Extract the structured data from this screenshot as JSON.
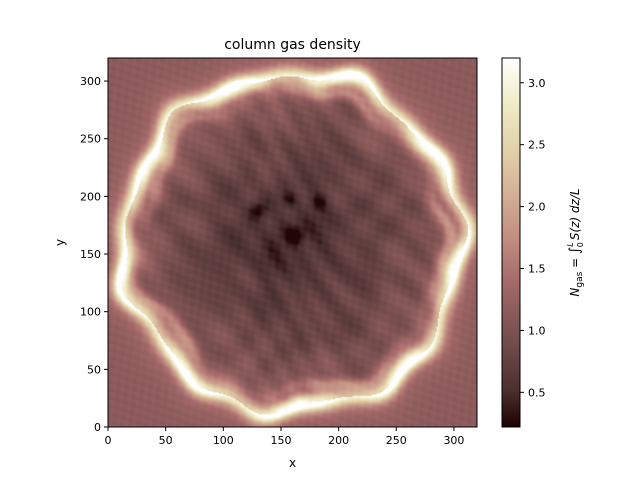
{
  "chart_data": {
    "type": "heatmap",
    "title": "column gas density",
    "xlabel": "x",
    "ylabel": "y",
    "xlim": [
      0,
      320
    ],
    "ylim": [
      0,
      320
    ],
    "xticks": [
      0,
      50,
      100,
      150,
      200,
      250,
      300
    ],
    "yticks": [
      0,
      50,
      100,
      150,
      200,
      250,
      300
    ],
    "colormap": "pink",
    "colorbar": {
      "label": "N_gas = ∫_0^L S(z) dz/L",
      "label_parts": {
        "n": "N",
        "n_sub": "gas",
        "eq": " = ",
        "integral": "∫",
        "upper": "L",
        "lower": "0",
        "body": "S(z) dz/L"
      },
      "range": [
        0.22,
        3.2
      ],
      "ticks": [
        0.5,
        1.0,
        1.5,
        2.0,
        2.5,
        3.0
      ],
      "tick_labels": [
        "0.5",
        "1.0",
        "1.5",
        "2.0",
        "2.5",
        "3.0"
      ]
    },
    "field": {
      "background": 1.15,
      "shell_center": [
        160,
        160
      ],
      "shell_radius": 145,
      "shell_peak": 3.1,
      "interior": 0.75,
      "minimum": 0.25,
      "dark_spots": [
        [
          162,
          166
        ],
        [
          130,
          188
        ],
        [
          157,
          197
        ],
        [
          183,
          195
        ]
      ]
    }
  }
}
